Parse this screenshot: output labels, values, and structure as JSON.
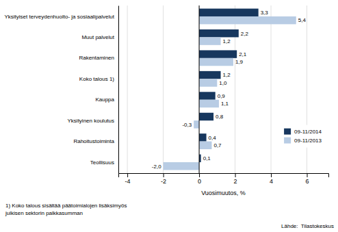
{
  "chart_data": {
    "type": "bar",
    "orientation": "horizontal",
    "categories": [
      "Teollisuus",
      "Rahoitustoiminta",
      "Yksityinen koulutus",
      "Kauppa",
      "Koko talous 1)",
      "Rakentaminen",
      "Muut palvelut",
      "Yksityiset terveydenhuolto- ja sosiaalipalvelut"
    ],
    "series": [
      {
        "name": "09-11/2014",
        "color": "#17375e",
        "values": [
          0.1,
          0.4,
          0.8,
          0.9,
          1.2,
          2.1,
          2.2,
          3.3
        ],
        "value_labels": [
          "0,1",
          "0,4",
          "0,8",
          "0,9",
          "1,2",
          "2,1",
          "2,2",
          "3,3"
        ]
      },
      {
        "name": "09-11/2013",
        "color": "#b8cce4",
        "values": [
          -2.0,
          0.7,
          -0.3,
          1.1,
          1.0,
          1.9,
          1.2,
          5.4
        ],
        "value_labels": [
          "-2,0",
          "0,7",
          "-0,3",
          "1,1",
          "1,0",
          "1,9",
          "1,2",
          "5,4"
        ]
      }
    ],
    "x_label": "Vuosimuutos, %",
    "xlim": [
      -4.5,
      7.2
    ],
    "xticks": [
      -4,
      -2,
      0,
      2,
      4,
      6
    ],
    "grid": true,
    "legend": "lower right",
    "data_labels": true,
    "annotations": [
      "1) Koko talous sisältää päätoimialojen lisäksimyös",
      "julkisen sektorin palkkasumman",
      "Lähde:  Tilastokeskus"
    ]
  }
}
